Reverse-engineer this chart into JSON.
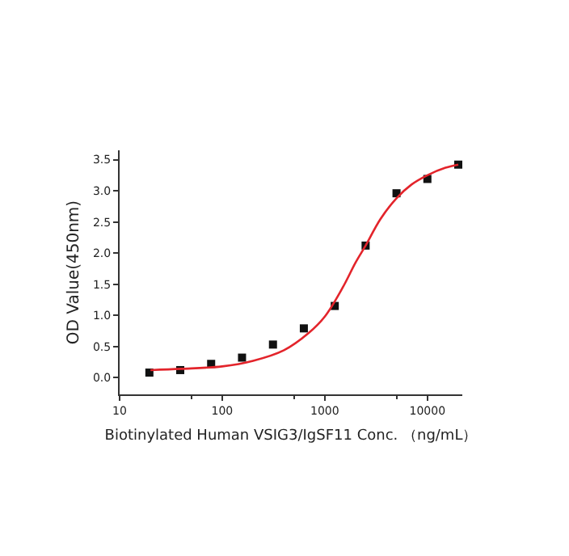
{
  "chart_data": {
    "type": "scatter",
    "xlabel": "Biotinylated Human VSIG3/IgSF11 Conc. （ng/mL）",
    "ylabel": "OD Value(450nm)",
    "log": "x",
    "xlim": [
      10,
      21900
    ],
    "xticks": [
      10,
      100,
      1000,
      10000
    ],
    "ylim": [
      -0.27,
      3.65
    ],
    "yticks": [
      {
        "value": 0,
        "label": "0.0"
      },
      0.5,
      {
        "value": 1,
        "label": "1.0"
      },
      1.5,
      {
        "value": 2,
        "label": "2.0"
      },
      2.5,
      {
        "value": 3,
        "label": "3.0"
      },
      3.5
    ],
    "series": [
      {
        "marker": "square",
        "color": "#111111",
        "x": [
          19.5,
          39,
          78,
          156,
          312.5,
          625,
          1250,
          2500,
          5000,
          10000,
          20000
        ],
        "values": [
          0.08,
          0.12,
          0.22,
          0.32,
          0.53,
          0.79,
          1.15,
          2.12,
          2.96,
          3.19,
          3.42
        ]
      },
      {
        "type": "line",
        "marker": "none",
        "line_style": "solid",
        "color": "#e3242b",
        "x": [
          20,
          40,
          100,
          200,
          400,
          700,
          1000,
          1500,
          2000,
          2500,
          3500,
          5000,
          7000,
          10000,
          15000,
          20000
        ],
        "values": [
          0.12,
          0.14,
          0.18,
          0.27,
          0.44,
          0.72,
          0.98,
          1.45,
          1.85,
          2.12,
          2.55,
          2.88,
          3.1,
          3.25,
          3.37,
          3.42
        ]
      }
    ]
  }
}
